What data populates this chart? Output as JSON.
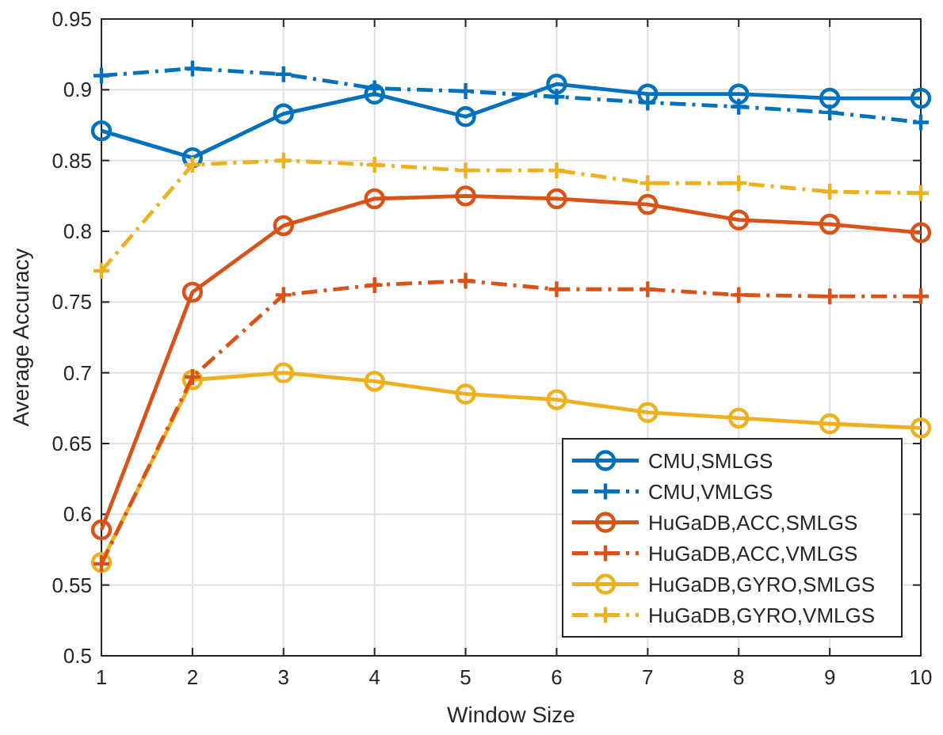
{
  "chart_data": {
    "type": "line",
    "xlabel": "Window Size",
    "ylabel": "Average Accuracy",
    "x": [
      1,
      2,
      3,
      4,
      5,
      6,
      7,
      8,
      9,
      10
    ],
    "xlim": [
      1,
      10
    ],
    "xticks": [
      1,
      2,
      3,
      4,
      5,
      6,
      7,
      8,
      9,
      10
    ],
    "ylim": [
      0.5,
      0.95
    ],
    "yticks": [
      0.5,
      0.55,
      0.6,
      0.65,
      0.7,
      0.75,
      0.8,
      0.85,
      0.9,
      0.95
    ],
    "grid": true,
    "legend": "bottom right",
    "series": [
      {
        "name": "CMU,SMLGS",
        "color": "#0072bd",
        "marker": "circle",
        "line_style": "solid",
        "values": [
          0.871,
          0.852,
          0.883,
          0.897,
          0.881,
          0.904,
          0.897,
          0.897,
          0.894,
          0.894
        ]
      },
      {
        "name": "CMU,VMLGS",
        "color": "#0072bd",
        "marker": "cross",
        "line_style": "dashed",
        "values": [
          0.91,
          0.915,
          0.911,
          0.901,
          0.899,
          0.895,
          0.891,
          0.888,
          0.884,
          0.877
        ]
      },
      {
        "name": "HuGaDB,ACC,SMLGS",
        "color": "#d95319",
        "marker": "circle",
        "line_style": "solid",
        "values": [
          0.589,
          0.757,
          0.804,
          0.823,
          0.825,
          0.823,
          0.819,
          0.808,
          0.805,
          0.799
        ]
      },
      {
        "name": "HuGaDB,ACC,VMLGS",
        "color": "#d95319",
        "marker": "cross",
        "line_style": "dashed",
        "values": [
          0.565,
          0.697,
          0.755,
          0.762,
          0.765,
          0.759,
          0.759,
          0.755,
          0.754,
          0.754
        ]
      },
      {
        "name": "HuGaDB,GYRO,SMLGS",
        "color": "#edb120",
        "marker": "circle",
        "line_style": "solid",
        "values": [
          0.566,
          0.695,
          0.7,
          0.694,
          0.685,
          0.681,
          0.672,
          0.668,
          0.664,
          0.661
        ]
      },
      {
        "name": "HuGaDB,GYRO,VMLGS",
        "color": "#edb120",
        "marker": "cross",
        "line_style": "dashed",
        "values": [
          0.772,
          0.847,
          0.85,
          0.847,
          0.843,
          0.843,
          0.834,
          0.834,
          0.828,
          0.827
        ]
      }
    ]
  }
}
